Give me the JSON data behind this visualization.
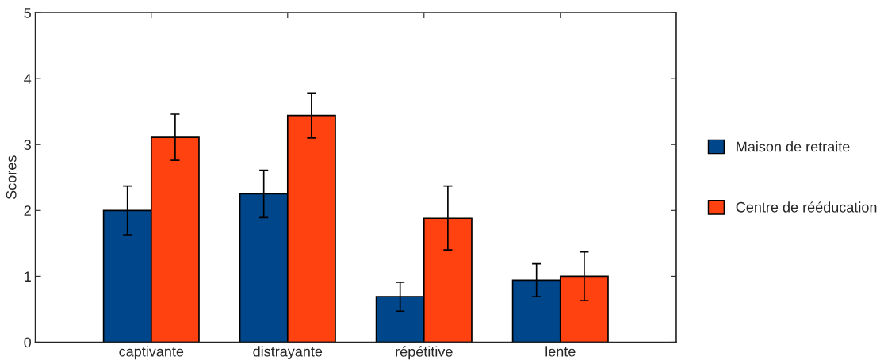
{
  "chart_data": {
    "type": "bar",
    "ylabel": "Scores",
    "categories": [
      "captivante",
      "distrayante",
      "répétitive",
      "lente"
    ],
    "series": [
      {
        "name": "Maison de retraite",
        "color": "#00468b",
        "values": [
          2.0,
          2.25,
          0.69,
          0.94
        ],
        "errors": [
          [
            1.63,
            2.37
          ],
          [
            1.89,
            2.61
          ],
          [
            0.47,
            0.91
          ],
          [
            0.69,
            1.19
          ]
        ]
      },
      {
        "name": "Centre de rééducation",
        "color": "#ff4210",
        "values": [
          3.11,
          3.44,
          1.88,
          1.0
        ],
        "errors": [
          [
            2.76,
            3.46
          ],
          [
            3.1,
            3.78
          ],
          [
            1.4,
            2.37
          ],
          [
            0.63,
            1.37
          ]
        ]
      }
    ],
    "ylim": [
      0,
      5
    ],
    "yticks": [
      0,
      1,
      2,
      3,
      4,
      5
    ],
    "grid": false,
    "legend": "right"
  }
}
